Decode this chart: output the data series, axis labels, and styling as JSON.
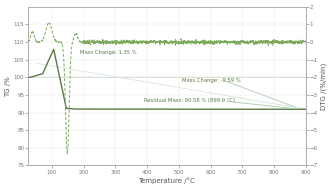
{
  "xlabel": "Temperature /°C",
  "ylabel_left": "TG /%",
  "ylabel_right": "DTG /(%/min)",
  "xlim": [
    25,
    900
  ],
  "ylim_left": [
    75,
    120
  ],
  "ylim_right": [
    -7,
    2
  ],
  "xticks": [
    100,
    200,
    300,
    400,
    500,
    600,
    700,
    800,
    900
  ],
  "yticks_left": [
    75,
    80,
    85,
    90,
    95,
    100,
    105,
    110,
    115
  ],
  "yticks_right": [
    -7,
    -6,
    -5,
    -4,
    -3,
    -2,
    -1,
    0,
    1,
    2
  ],
  "tg_color": "#5a7a48",
  "dtg_color": "#7aaa5a",
  "annotation_color": "#5a7a48",
  "line_color": "#aaccaa",
  "bg_color": "#ffffff",
  "annotation1": "Mass Change: 1.35 %",
  "annotation2": "Mass Change: -9.59 %",
  "annotation3": "Residual Mass: 90.56 % (899.9 °C)"
}
